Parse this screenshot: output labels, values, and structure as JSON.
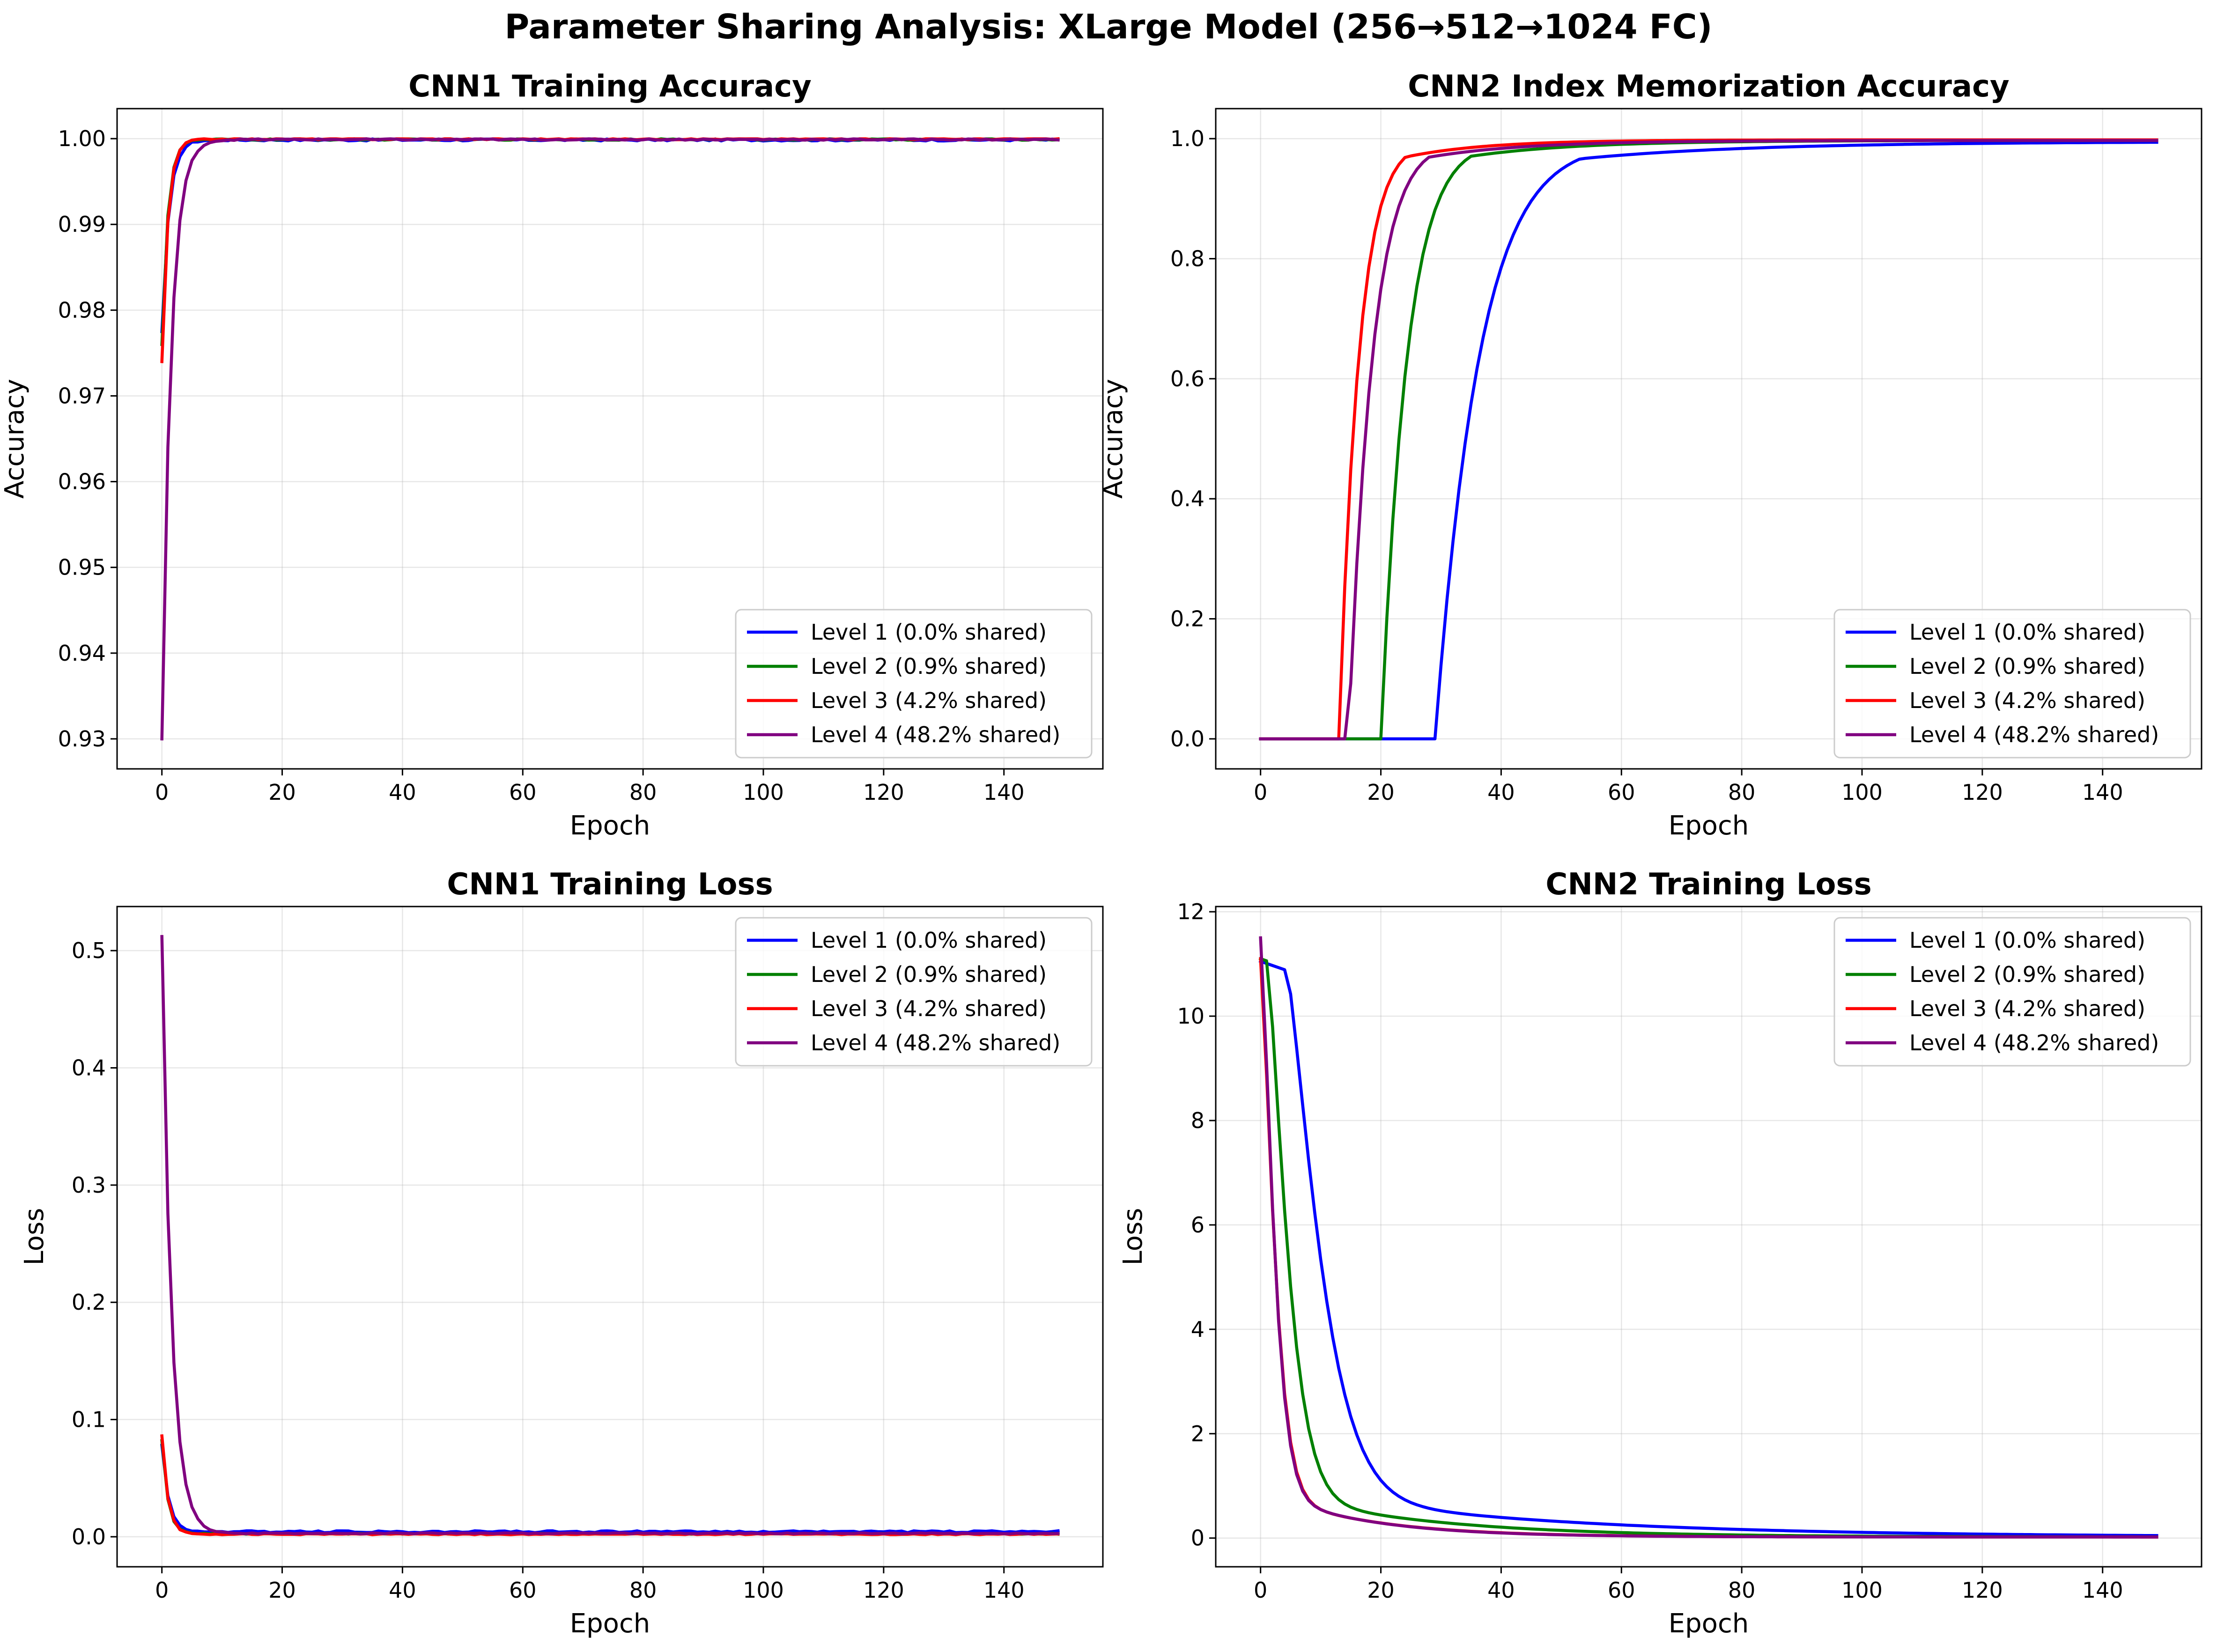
{
  "figure_title": "Parameter Sharing Analysis: XLarge Model (256→512→1024 FC)",
  "chart_data": [
    {
      "type": "line",
      "title": "CNN1 Training Accuracy",
      "xlabel": "Epoch",
      "ylabel": "Accuracy",
      "xlim": [
        -7.45,
        156.45
      ],
      "ylim": [
        0.9265,
        1.0035
      ],
      "xticks": [
        0,
        20,
        40,
        60,
        80,
        100,
        120,
        140
      ],
      "yticks": [
        0.93,
        0.94,
        0.95,
        0.96,
        0.97,
        0.98,
        0.99,
        1.0
      ],
      "xtick_labels": [
        "0",
        "20",
        "40",
        "60",
        "80",
        "100",
        "120",
        "140"
      ],
      "ytick_labels": [
        "0.93",
        "0.94",
        "0.95",
        "0.96",
        "0.97",
        "0.98",
        "0.99",
        "1.00"
      ],
      "grid": true,
      "legend": "lower-right",
      "curve": {
        "kind": "sat",
        "epochs": 150
      },
      "series": [
        {
          "name": "Level 1 (0.0% shared)",
          "color": "#0000ff",
          "start": 0.9775,
          "end": 0.99985,
          "tau": 1.2,
          "noise": 0.00012
        },
        {
          "name": "Level 2 (0.9% shared)",
          "color": "#008000",
          "start": 0.976,
          "end": 0.9999,
          "tau": 1.0,
          "noise": 8e-05
        },
        {
          "name": "Level 3 (4.2% shared)",
          "color": "#ff0000",
          "start": 0.974,
          "end": 0.99995,
          "tau": 1.0,
          "noise": 8e-05
        },
        {
          "name": "Level 4 (48.2% shared)",
          "color": "#800080",
          "start": 0.93,
          "end": 0.9999,
          "tau": 1.5,
          "noise": 8e-05
        }
      ]
    },
    {
      "type": "line",
      "title": "CNN2 Index Memorization Accuracy",
      "xlabel": "Epoch",
      "ylabel": "Accuracy",
      "xlim": [
        -7.45,
        156.45
      ],
      "ylim": [
        -0.05,
        1.05
      ],
      "xticks": [
        0,
        20,
        40,
        60,
        80,
        100,
        120,
        140
      ],
      "yticks": [
        0.0,
        0.2,
        0.4,
        0.6,
        0.8,
        1.0
      ],
      "xtick_labels": [
        "0",
        "20",
        "40",
        "60",
        "80",
        "100",
        "120",
        "140"
      ],
      "ytick_labels": [
        "0.0",
        "0.2",
        "0.4",
        "0.6",
        "0.8",
        "1.0"
      ],
      "grid": true,
      "legend": "lower-right",
      "curve": {
        "kind": "sigmoid",
        "epochs": 150
      },
      "series": [
        {
          "name": "Level 1 (0.0% shared)",
          "color": "#0000ff",
          "mid": 18.0,
          "scale": 6.5,
          "end": 0.995,
          "delay": 7
        },
        {
          "name": "Level 2 (0.9% shared)",
          "color": "#008000",
          "mid": 11.5,
          "scale": 4.0,
          "end": 0.997,
          "delay": 3
        },
        {
          "name": "Level 3 (4.2% shared)",
          "color": "#ff0000",
          "mid": 7.5,
          "scale": 3.0,
          "end": 0.998,
          "delay": 2
        },
        {
          "name": "Level 4 (48.2% shared)",
          "color": "#800080",
          "mid": 7.8,
          "scale": 3.6,
          "end": 0.997,
          "delay": 1
        }
      ]
    },
    {
      "type": "line",
      "title": "CNN1 Training Loss",
      "xlabel": "Epoch",
      "ylabel": "Loss",
      "xlim": [
        -7.45,
        156.45
      ],
      "ylim": [
        -0.0256,
        0.5376
      ],
      "xticks": [
        0,
        20,
        40,
        60,
        80,
        100,
        120,
        140
      ],
      "yticks": [
        0.0,
        0.1,
        0.2,
        0.3,
        0.4,
        0.5
      ],
      "xtick_labels": [
        "0",
        "20",
        "40",
        "60",
        "80",
        "100",
        "120",
        "140"
      ],
      "ytick_labels": [
        "0.0",
        "0.1",
        "0.2",
        "0.3",
        "0.4",
        "0.5"
      ],
      "grid": true,
      "legend": "upper-right",
      "curve": {
        "kind": "decay",
        "epochs": 150
      },
      "series": [
        {
          "name": "Level 1 (0.0% shared)",
          "color": "#0000ff",
          "start": 0.078,
          "end": 0.0035,
          "tau": 1.1,
          "noise": 0.0016
        },
        {
          "name": "Level 2 (0.9% shared)",
          "color": "#008000",
          "start": 0.082,
          "end": 0.0022,
          "tau": 1.0,
          "noise": 0.0008
        },
        {
          "name": "Level 3 (4.2% shared)",
          "color": "#ff0000",
          "start": 0.086,
          "end": 0.0018,
          "tau": 1.0,
          "noise": 0.0008
        },
        {
          "name": "Level 4 (48.2% shared)",
          "color": "#800080",
          "start": 0.512,
          "end": 0.0025,
          "tau": 1.6,
          "noise": 0.0008
        }
      ]
    },
    {
      "type": "line",
      "title": "CNN2 Training Loss",
      "xlabel": "Epoch",
      "ylabel": "Loss",
      "xlim": [
        -7.45,
        156.45
      ],
      "ylim": [
        -0.55,
        12.1
      ],
      "xticks": [
        0,
        20,
        40,
        60,
        80,
        100,
        120,
        140
      ],
      "yticks": [
        0,
        2,
        4,
        6,
        8,
        10,
        12
      ],
      "xtick_labels": [
        "0",
        "20",
        "40",
        "60",
        "80",
        "100",
        "120",
        "140"
      ],
      "ytick_labels": [
        "0",
        "2",
        "4",
        "6",
        "8",
        "10",
        "12"
      ],
      "grid": true,
      "legend": "upper-right",
      "curve": {
        "kind": "lossdrop",
        "epochs": 150
      },
      "series": [
        {
          "name": "Level 1 (0.0% shared)",
          "color": "#0000ff",
          "start": 11.05,
          "plateau": 4,
          "tau": 7.0,
          "end": 0.02
        },
        {
          "name": "Level 2 (0.9% shared)",
          "color": "#008000",
          "start": 11.1,
          "plateau": 1,
          "tau": 4.2,
          "end": 0.02
        },
        {
          "name": "Level 3 (4.2% shared)",
          "color": "#ff0000",
          "start": 11.1,
          "plateau": 0,
          "tau": 2.8,
          "end": 0.02
        },
        {
          "name": "Level 4 (48.2% shared)",
          "color": "#800080",
          "start": 11.5,
          "plateau": 0,
          "tau": 2.7,
          "end": 0.02
        }
      ]
    }
  ]
}
